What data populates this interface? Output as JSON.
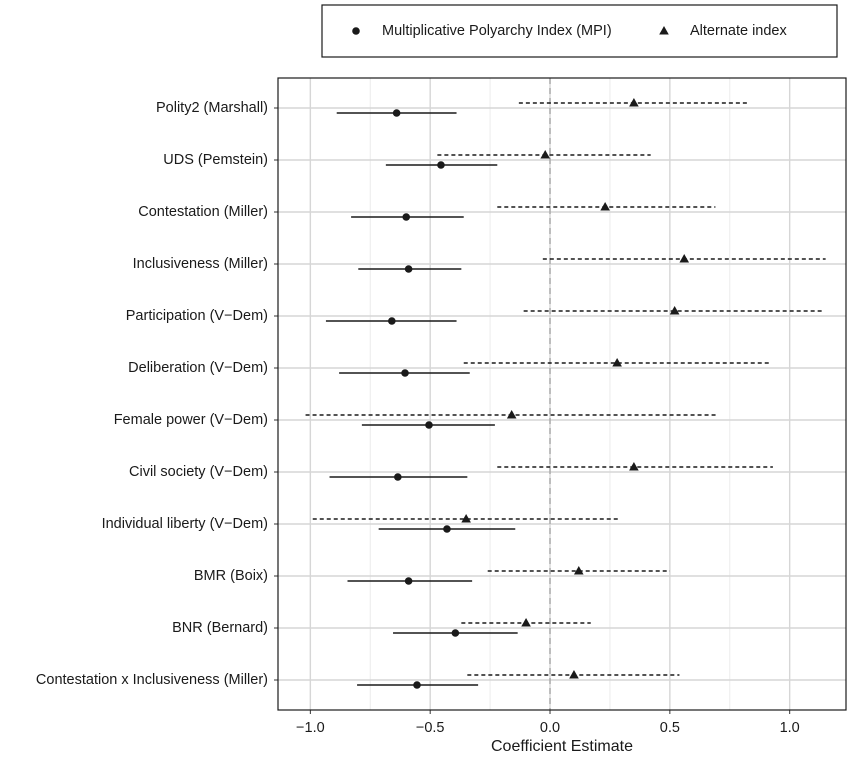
{
  "chart_data": {
    "type": "coefficient",
    "x_label": "Coefficient Estimate",
    "categories": [
      "Polity2 (Marshall)",
      "UDS (Pemstein)",
      "Contestation (Miller)",
      "Inclusiveness (Miller)",
      "Participation (V−Dem)",
      "Deliberation (V−Dem)",
      "Female power (V−Dem)",
      "Civil society (V−Dem)",
      "Individual liberty (V−Dem)",
      "BMR (Boix)",
      "BNR (Bernard)",
      "Contestation x Inclusiveness (Miller)"
    ],
    "series": [
      {
        "name": "Multiplicative Polyarchy Index (MPI)",
        "color": "#1a1a1a",
        "marker": "circle",
        "line_style": "solid",
        "values": [
          -0.64,
          -0.455,
          -0.6,
          -0.59,
          -0.66,
          -0.605,
          -0.505,
          -0.635,
          -0.43,
          -0.59,
          -0.395,
          -0.555
        ],
        "lower": [
          -0.89,
          -0.685,
          -0.83,
          -0.8,
          -0.935,
          -0.88,
          -0.785,
          -0.92,
          -0.715,
          -0.845,
          -0.655,
          -0.805
        ],
        "upper": [
          -0.39,
          -0.22,
          -0.36,
          -0.37,
          -0.39,
          -0.335,
          -0.23,
          -0.345,
          -0.145,
          -0.325,
          -0.135,
          -0.3
        ]
      },
      {
        "name": "Alternate index",
        "color": "#1a1a1a",
        "marker": "triangle",
        "line_style": "dashed",
        "values": [
          0.35,
          -0.02,
          0.23,
          0.56,
          0.52,
          0.28,
          -0.16,
          0.35,
          -0.35,
          0.12,
          -0.1,
          0.1
        ],
        "lower": [
          -0.13,
          -0.47,
          -0.22,
          -0.03,
          -0.11,
          -0.36,
          -1.02,
          -0.22,
          -0.99,
          -0.26,
          -0.37,
          -0.345
        ],
        "upper": [
          0.83,
          0.42,
          0.69,
          1.15,
          1.14,
          0.92,
          0.7,
          0.93,
          0.29,
          0.5,
          0.17,
          0.54
        ]
      }
    ],
    "xlim": [
      -1.135,
      1.235
    ],
    "xticks": [
      {
        "value": -1.0,
        "label": "−1.0"
      },
      {
        "value": -0.5,
        "label": "−0.5"
      },
      {
        "value": 0.0,
        "label": "0.0"
      },
      {
        "value": 0.5,
        "label": "0.5"
      },
      {
        "value": 1.0,
        "label": "1.0"
      }
    ],
    "reference_line": 0,
    "grid": true,
    "minor_grid": true,
    "legend_position": "top"
  }
}
